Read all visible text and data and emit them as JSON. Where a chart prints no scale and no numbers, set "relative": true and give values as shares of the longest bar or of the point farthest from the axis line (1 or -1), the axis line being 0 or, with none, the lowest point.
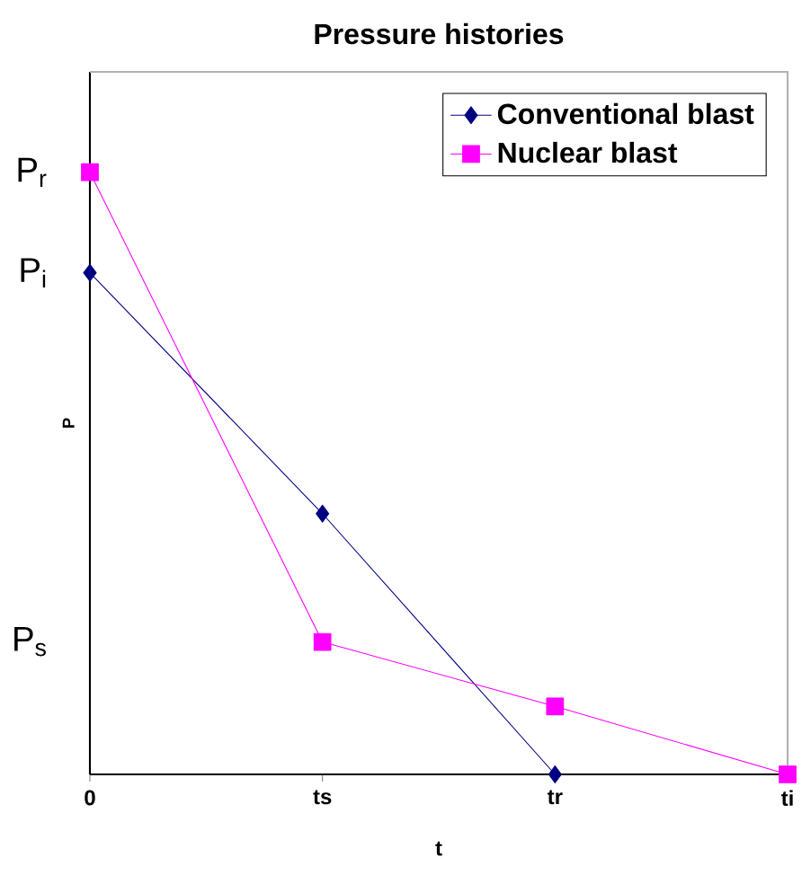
{
  "chart_data": {
    "type": "line",
    "title": "Pressure histories",
    "xlabel": "t",
    "ylabel": "P",
    "categories": [
      "0",
      "ts",
      "tr",
      "ti"
    ],
    "relative": true,
    "series": [
      {
        "name": "Conventional blast",
        "color": "#000080",
        "marker": "diamond",
        "values": [
          0.833,
          0.433,
          0,
          null
        ]
      },
      {
        "name": "Nuclear blast",
        "color": "#ff00ff",
        "marker": "square",
        "values": [
          1,
          0.22,
          0.113,
          0
        ]
      }
    ],
    "annotations": [
      "P$_{r}$",
      "P$_{i}$",
      "P$_{s}$"
    ],
    "legend": "top right",
    "grid": false
  }
}
